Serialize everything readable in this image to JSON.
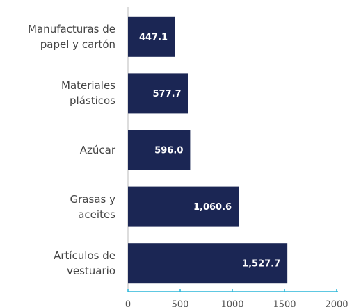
{
  "chart_data": {
    "type": "barh",
    "categories": [
      "Manufacturas de\npapel y cartón",
      "Materiales\nplásticos",
      "Azúcar",
      "Grasas y\naceites",
      "Artículos de\nvestuario"
    ],
    "values": [
      447.1,
      577.7,
      596.0,
      1060.6,
      1527.7
    ],
    "value_labels": [
      "447.1",
      "577.7",
      "596.0",
      "1,060.6",
      "1,527.7"
    ],
    "color": "#1b2654",
    "xlim": [
      0,
      2000
    ],
    "xticks": [
      0,
      500,
      1000,
      1500,
      2000
    ]
  }
}
